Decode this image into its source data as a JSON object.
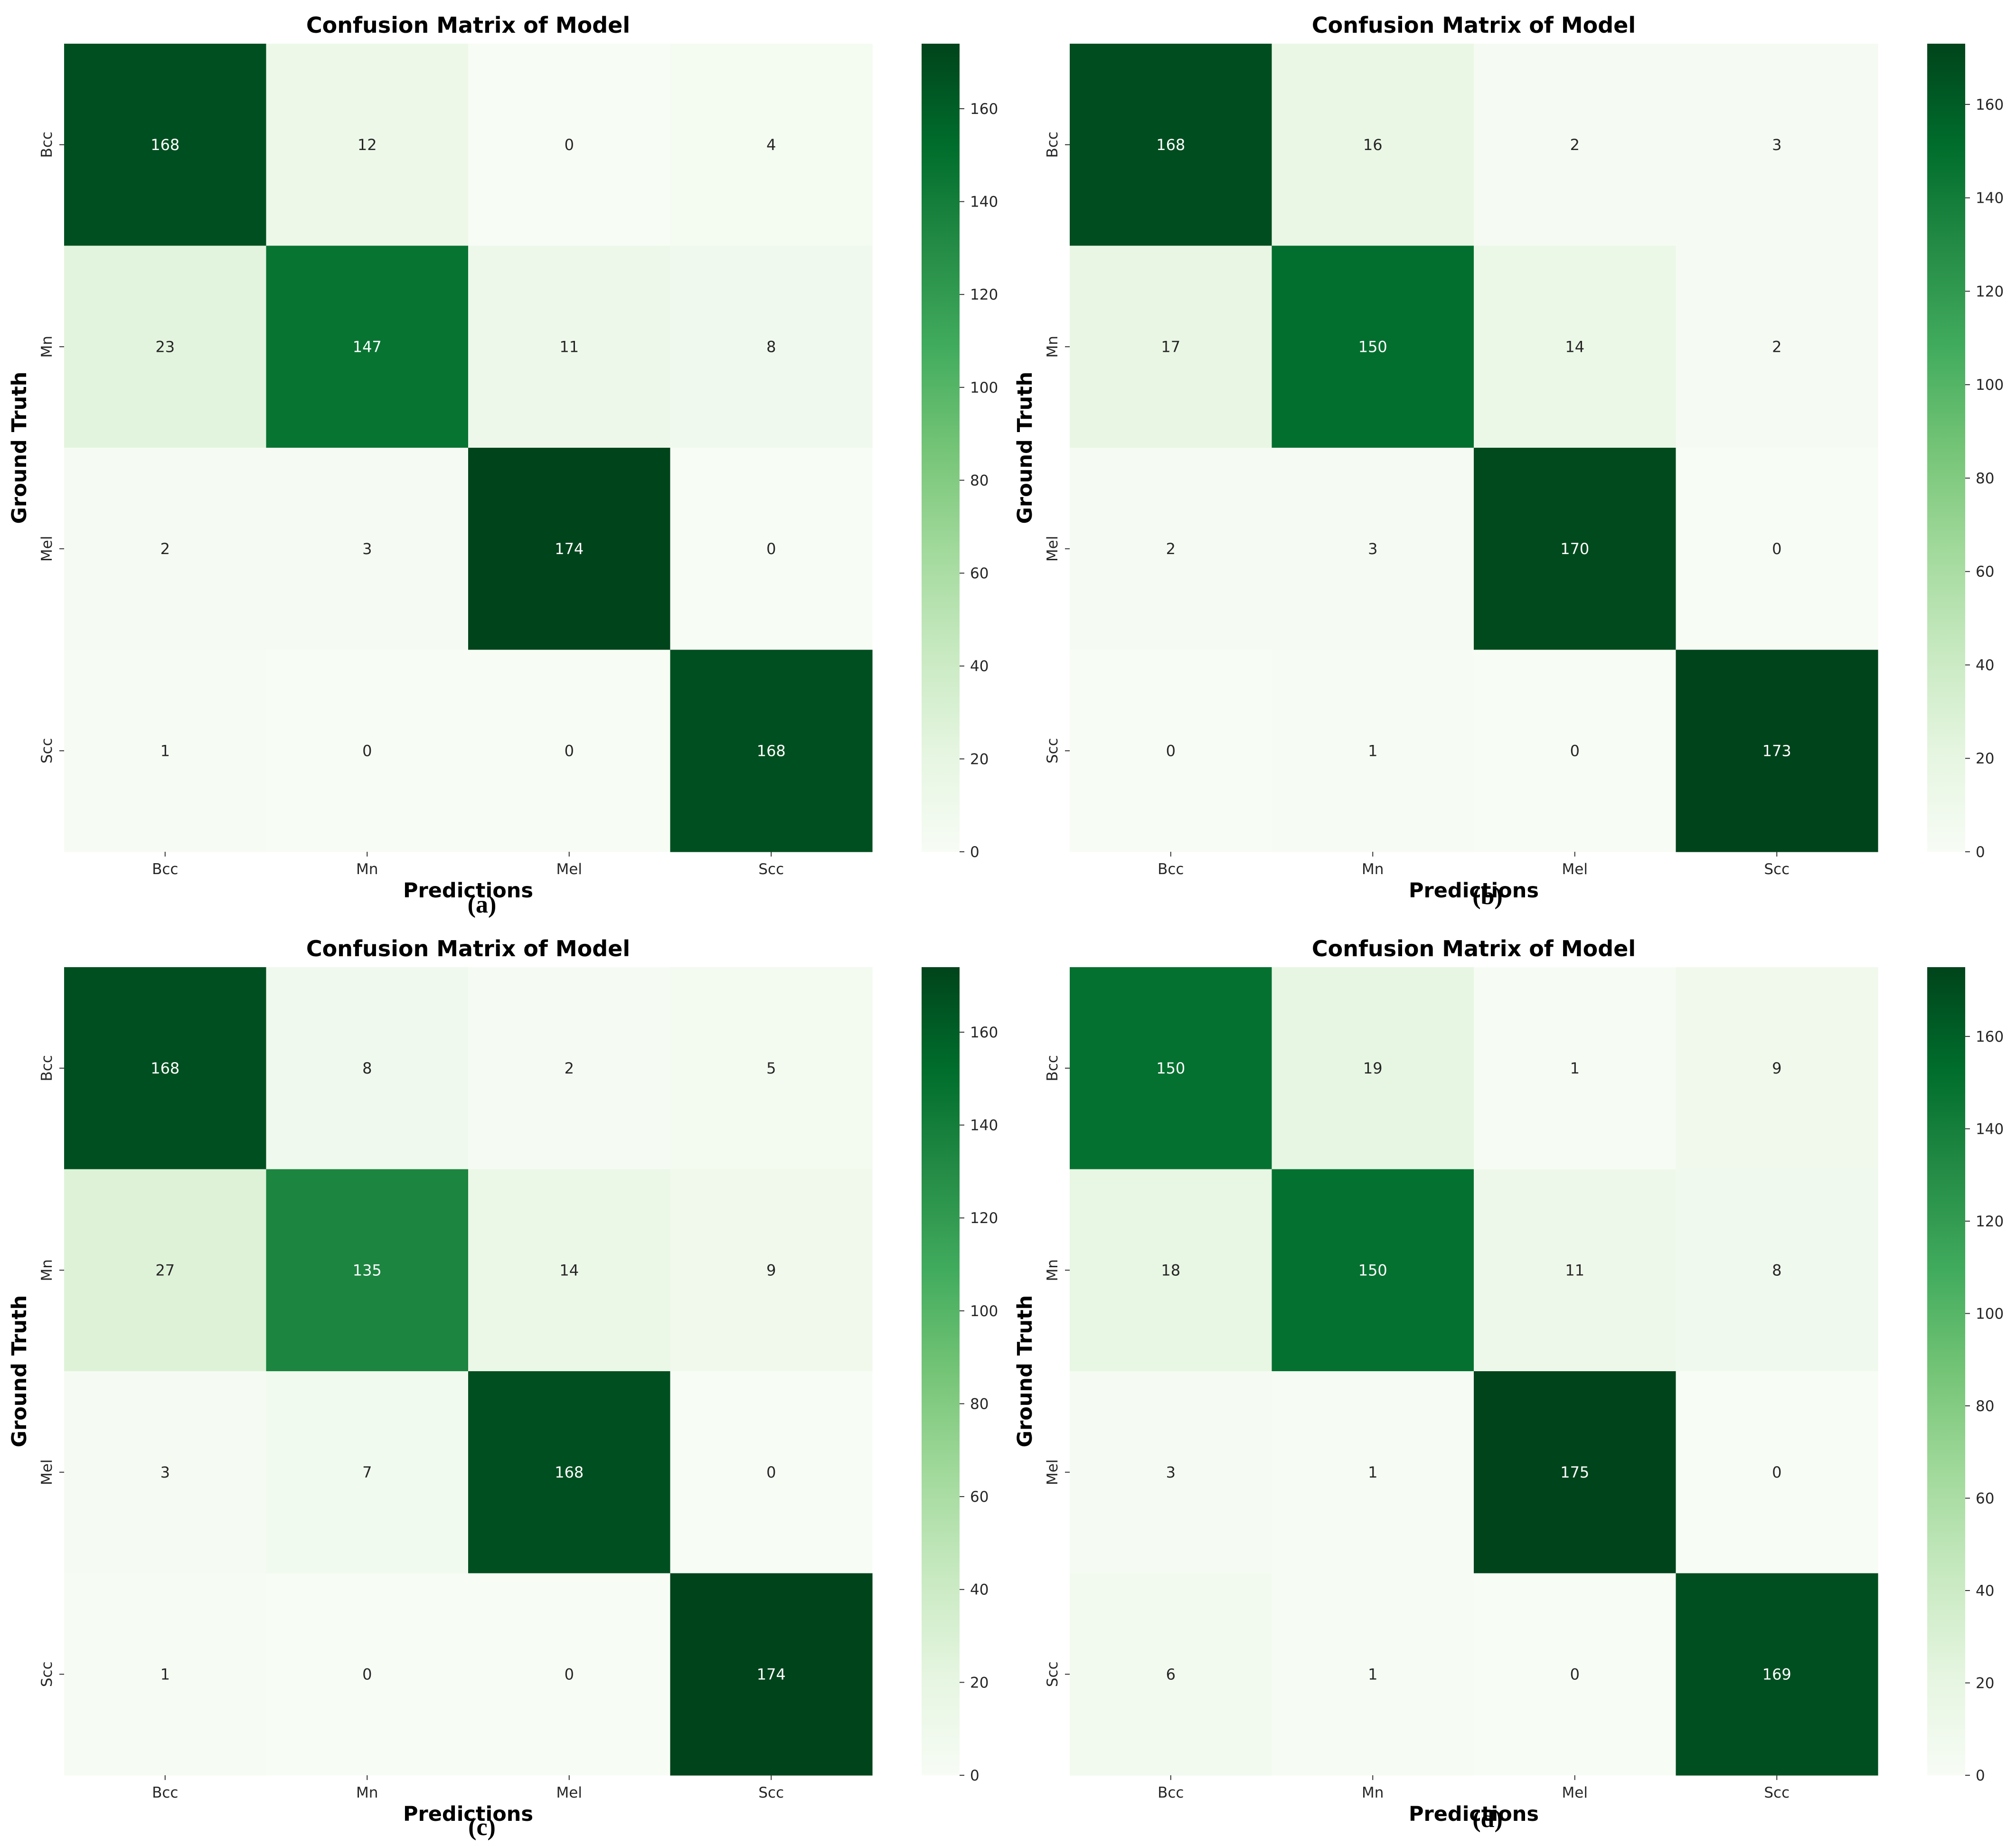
{
  "figure": {
    "panels": [
      {
        "id": "a",
        "caption": "(a)"
      },
      {
        "id": "b",
        "caption": "(b)"
      },
      {
        "id": "c",
        "caption": "(c)"
      },
      {
        "id": "d",
        "caption": "(d)"
      }
    ]
  },
  "colors": {
    "colormap": "Greens",
    "low": "#f7fcf5",
    "high": "#00441b",
    "dark_text": "#262626",
    "light_text": "#ffffff"
  },
  "chart_data": [
    {
      "type": "heatmap",
      "title": "Confusion Matrix of Model",
      "xlabel": "Predictions",
      "ylabel": "Ground Truth",
      "x_categories": [
        "Bcc",
        "Mn",
        "Mel",
        "Scc"
      ],
      "y_categories": [
        "Bcc",
        "Mn",
        "Mel",
        "Scc"
      ],
      "values": [
        [
          168,
          12,
          0,
          4
        ],
        [
          23,
          147,
          11,
          8
        ],
        [
          2,
          3,
          174,
          0
        ],
        [
          1,
          0,
          0,
          168
        ]
      ],
      "colorbar": {
        "ticks": [
          0,
          20,
          40,
          60,
          80,
          100,
          120,
          140,
          160
        ],
        "vmin": 0,
        "vmax": 174
      }
    },
    {
      "type": "heatmap",
      "title": "Confusion Matrix of Model",
      "xlabel": "Predictions",
      "ylabel": "Ground Truth",
      "x_categories": [
        "Bcc",
        "Mn",
        "Mel",
        "Scc"
      ],
      "y_categories": [
        "Bcc",
        "Mn",
        "Mel",
        "Scc"
      ],
      "values": [
        [
          168,
          16,
          2,
          3
        ],
        [
          17,
          150,
          14,
          2
        ],
        [
          2,
          3,
          170,
          0
        ],
        [
          0,
          1,
          0,
          173
        ]
      ],
      "colorbar": {
        "ticks": [
          0,
          20,
          40,
          60,
          80,
          100,
          120,
          140,
          160
        ],
        "vmin": 0,
        "vmax": 173
      }
    },
    {
      "type": "heatmap",
      "title": "Confusion Matrix of Model",
      "xlabel": "Predictions",
      "ylabel": "Ground Truth",
      "x_categories": [
        "Bcc",
        "Mn",
        "Mel",
        "Scc"
      ],
      "y_categories": [
        "Bcc",
        "Mn",
        "Mel",
        "Scc"
      ],
      "values": [
        [
          168,
          8,
          2,
          5
        ],
        [
          27,
          135,
          14,
          9
        ],
        [
          3,
          7,
          168,
          0
        ],
        [
          1,
          0,
          0,
          174
        ]
      ],
      "colorbar": {
        "ticks": [
          0,
          20,
          40,
          60,
          80,
          100,
          120,
          140,
          160
        ],
        "vmin": 0,
        "vmax": 174
      }
    },
    {
      "type": "heatmap",
      "title": "Confusion Matrix of Model",
      "xlabel": "Predictions",
      "ylabel": "Ground Truth",
      "x_categories": [
        "Bcc",
        "Mn",
        "Mel",
        "Scc"
      ],
      "y_categories": [
        "Bcc",
        "Mn",
        "Mel",
        "Scc"
      ],
      "values": [
        [
          150,
          19,
          1,
          9
        ],
        [
          18,
          150,
          11,
          8
        ],
        [
          3,
          1,
          175,
          0
        ],
        [
          6,
          1,
          0,
          169
        ]
      ],
      "colorbar": {
        "ticks": [
          0,
          20,
          40,
          60,
          80,
          100,
          120,
          140,
          160
        ],
        "vmin": 0,
        "vmax": 175
      }
    }
  ]
}
